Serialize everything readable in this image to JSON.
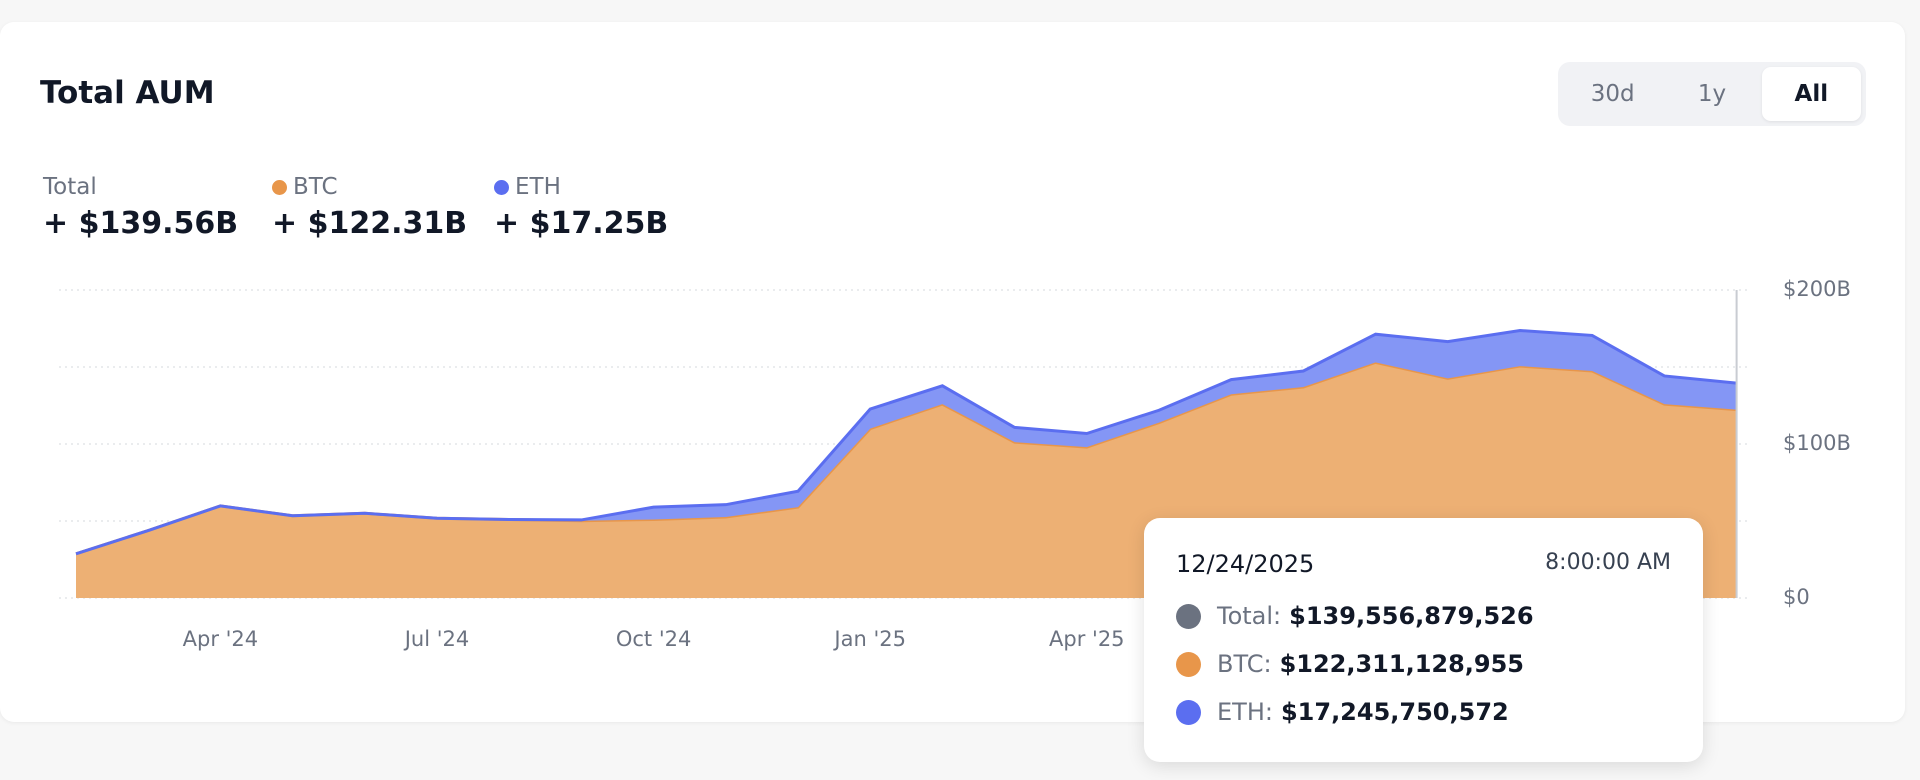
{
  "header": {
    "title": "Total AUM",
    "ranges": [
      "30d",
      "1y",
      "All"
    ],
    "active_range": 2
  },
  "summary": {
    "total_label": "Total",
    "values": [
      "+ $139.56B",
      "+ $122.31B",
      "+ $17.25B"
    ]
  },
  "chart_data": {
    "type": "stacked_area",
    "categories": [
      null,
      null,
      "Apr '24",
      null,
      null,
      "Jul '24",
      null,
      null,
      "Oct '24",
      null,
      null,
      "Jan '25",
      null,
      null,
      "Apr '25",
      null,
      null,
      null,
      null,
      null,
      null,
      null,
      null,
      null
    ],
    "series": [
      {
        "name": "BTC",
        "color": "#e8964a",
        "values": [
          28.7,
          43.8,
          59.8,
          53.4,
          55,
          51.8,
          51,
          50.2,
          51,
          52.6,
          59,
          110,
          125.9,
          101.2,
          98,
          113.9,
          132.3,
          137,
          153,
          142.6,
          150.6,
          147.4,
          125.9,
          122.31
        ]
      },
      {
        "name": "ETH",
        "color": "#5b6ef0",
        "values": [
          0,
          0,
          0,
          0,
          0,
          0,
          0,
          0.5,
          8,
          8,
          10.3,
          12.7,
          11.9,
          9.6,
          8.8,
          8,
          9.5,
          10.4,
          18.3,
          23.9,
          23.1,
          23.1,
          18.3,
          17.25
        ]
      }
    ],
    "ylim": [
      0,
      200
    ],
    "yticks": [
      {
        "value": 0,
        "label": "$0"
      },
      {
        "value": 50,
        "label": null
      },
      {
        "value": 100,
        "label": "$100B"
      },
      {
        "value": 150,
        "label": null
      },
      {
        "value": 200,
        "label": "$200B"
      }
    ],
    "grid": true
  },
  "tooltip": {
    "date": "12/24/2025",
    "time": "8:00:00 AM",
    "rows": [
      {
        "label": "Total:",
        "value": "$139,556,879,526",
        "color": "#6b7280"
      },
      {
        "label": "BTC:",
        "value": "$122,311,128,955",
        "color": "#e8964a"
      },
      {
        "label": "ETH:",
        "value": "$17,245,750,572",
        "color": "#5b6ef0"
      }
    ]
  }
}
